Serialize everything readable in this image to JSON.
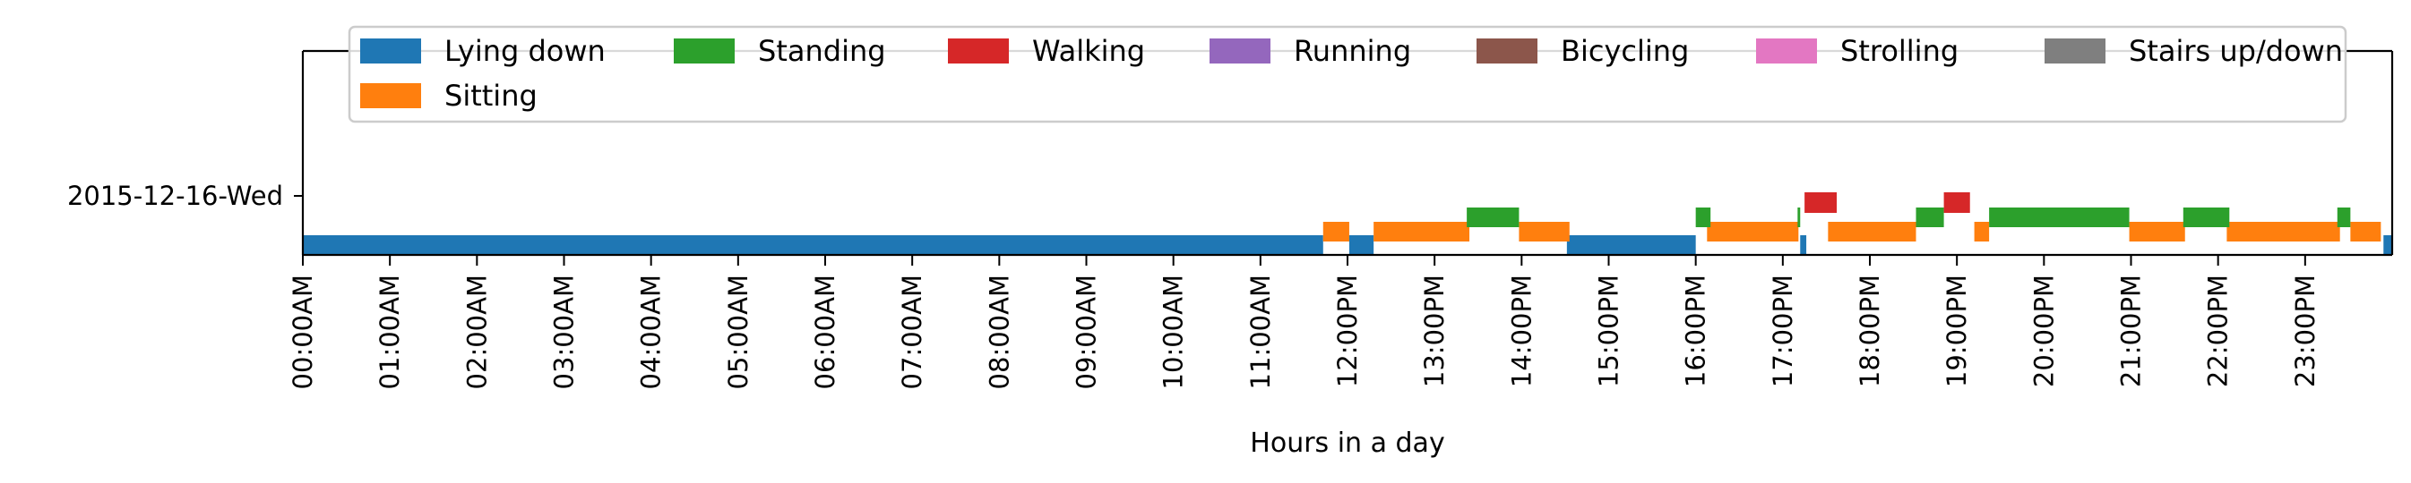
{
  "chart_data": {
    "type": "timeline",
    "xlabel": "Hours in a day",
    "xlim": [
      0,
      24
    ],
    "rows": [
      "2015-12-16-Wed"
    ],
    "x_tick_labels": [
      "00:00AM",
      "01:00AM",
      "02:00AM",
      "03:00AM",
      "04:00AM",
      "05:00AM",
      "06:00AM",
      "07:00AM",
      "08:00AM",
      "09:00AM",
      "10:00AM",
      "11:00AM",
      "12:00PM",
      "13:00PM",
      "14:00PM",
      "15:00PM",
      "16:00PM",
      "17:00PM",
      "18:00PM",
      "19:00PM",
      "20:00PM",
      "21:00PM",
      "22:00PM",
      "23:00PM"
    ],
    "legend": {
      "placement": "top",
      "entries": [
        {
          "label": "Lying down",
          "color": "#1f77b4"
        },
        {
          "label": "Standing",
          "color": "#2ca02c"
        },
        {
          "label": "Walking",
          "color": "#d62728"
        },
        {
          "label": "Running",
          "color": "#9467bd"
        },
        {
          "label": "Bicycling",
          "color": "#8c564b"
        },
        {
          "label": "Strolling",
          "color": "#e377c2"
        },
        {
          "label": "Stairs up/down",
          "color": "#7f7f7f"
        },
        {
          "label": "Sitting",
          "color": "#ff7f0e"
        }
      ]
    },
    "series": [
      {
        "name": "Lying down",
        "segments": [
          [
            0.0,
            11.72
          ],
          [
            12.02,
            12.3
          ],
          [
            14.52,
            16.0
          ],
          [
            17.2,
            17.27
          ],
          [
            23.9,
            24.0
          ]
        ]
      },
      {
        "name": "Sitting",
        "segments": [
          [
            11.72,
            12.02
          ],
          [
            12.3,
            13.4
          ],
          [
            13.97,
            14.55
          ],
          [
            16.13,
            17.18
          ],
          [
            17.52,
            18.53
          ],
          [
            19.2,
            19.37
          ],
          [
            20.98,
            21.62
          ],
          [
            22.1,
            23.4
          ],
          [
            23.52,
            23.87
          ]
        ]
      },
      {
        "name": "Standing",
        "segments": [
          [
            13.37,
            13.97
          ],
          [
            16.0,
            16.17
          ],
          [
            17.17,
            17.2
          ],
          [
            18.53,
            18.85
          ],
          [
            19.37,
            20.98
          ],
          [
            21.6,
            22.13
          ],
          [
            23.37,
            23.52
          ]
        ]
      },
      {
        "name": "Walking",
        "segments": [
          [
            17.25,
            17.62
          ],
          [
            18.85,
            19.15
          ]
        ]
      }
    ]
  }
}
